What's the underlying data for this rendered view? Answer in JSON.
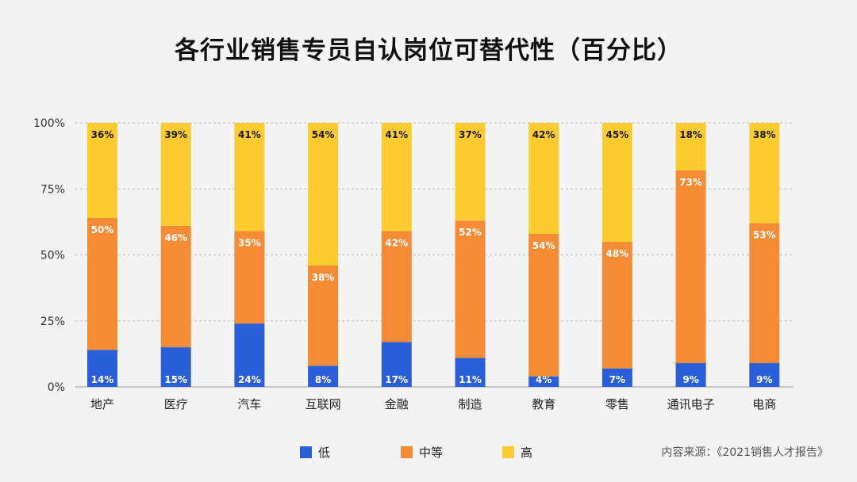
{
  "chart_data": {
    "type": "bar",
    "stacked": true,
    "title": "各行业销售专员自认岗位可替代性（百分比）",
    "categories": [
      "地产",
      "医疗",
      "汽车",
      "互联网",
      "金融",
      "制造",
      "教育",
      "零售",
      "通讯电子",
      "电商"
    ],
    "series": [
      {
        "name": "低",
        "color": "#2b5fd9",
        "values": [
          14,
          15,
          24,
          8,
          17,
          11,
          4,
          7,
          9,
          9
        ]
      },
      {
        "name": "中等",
        "color": "#f68b35",
        "values": [
          50,
          46,
          35,
          38,
          42,
          52,
          54,
          48,
          73,
          53
        ]
      },
      {
        "name": "高",
        "color": "#fccb2f",
        "values": [
          36,
          39,
          41,
          54,
          41,
          37,
          42,
          45,
          18,
          38
        ]
      }
    ],
    "yticks": [
      "0%",
      "25%",
      "50%",
      "75%",
      "100%"
    ],
    "ylim": [
      0,
      100
    ],
    "grid": true,
    "legend_position": "bottom"
  },
  "source_text": "内容来源：《2021销售人才报告》"
}
